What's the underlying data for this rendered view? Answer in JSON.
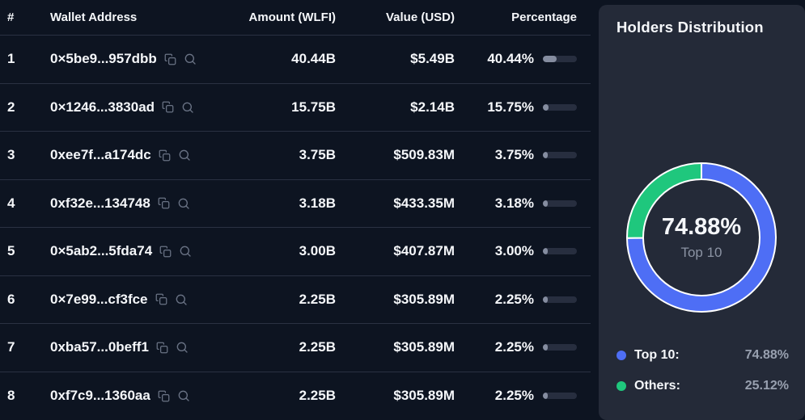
{
  "table": {
    "header": {
      "rank": "#",
      "wallet": "Wallet Address",
      "amount": "Amount (WLFI)",
      "value": "Value (USD)",
      "percentage": "Percentage"
    },
    "rows": [
      {
        "rank": "1",
        "wallet": "0×5be9...957dbb",
        "amount": "40.44B",
        "value": "$5.49B",
        "percentage": "40.44%",
        "pct": 40.44
      },
      {
        "rank": "2",
        "wallet": "0×1246...3830ad",
        "amount": "15.75B",
        "value": "$2.14B",
        "percentage": "15.75%",
        "pct": 15.75
      },
      {
        "rank": "3",
        "wallet": "0xee7f...a174dc",
        "amount": "3.75B",
        "value": "$509.83M",
        "percentage": "3.75%",
        "pct": 3.75
      },
      {
        "rank": "4",
        "wallet": "0xf32e...134748",
        "amount": "3.18B",
        "value": "$433.35M",
        "percentage": "3.18%",
        "pct": 3.18
      },
      {
        "rank": "5",
        "wallet": "0×5ab2...5fda74",
        "amount": "3.00B",
        "value": "$407.87M",
        "percentage": "3.00%",
        "pct": 3.0
      },
      {
        "rank": "6",
        "wallet": "0×7e99...cf3fce",
        "amount": "2.25B",
        "value": "$305.89M",
        "percentage": "2.25%",
        "pct": 2.25
      },
      {
        "rank": "7",
        "wallet": "0xba57...0beff1",
        "amount": "2.25B",
        "value": "$305.89M",
        "percentage": "2.25%",
        "pct": 2.25
      },
      {
        "rank": "8",
        "wallet": "0xf7c9...1360aa",
        "amount": "2.25B",
        "value": "$305.89M",
        "percentage": "2.25%",
        "pct": 2.25
      }
    ]
  },
  "panel": {
    "title": "Holders Distribution",
    "center": {
      "value": "74.88%",
      "label": "Top 10"
    },
    "legend": [
      {
        "label": "Top 10:",
        "value": "74.88%",
        "color": "#4e6ef5"
      },
      {
        "label": "Others:",
        "value": "25.12%",
        "color": "#1fc77d"
      }
    ]
  },
  "chart_data": {
    "type": "pie",
    "title": "Holders Distribution",
    "donut": true,
    "labels": [
      "Top 10",
      "Others"
    ],
    "values": [
      74.88,
      25.12
    ],
    "colors": [
      "#4e6ef5",
      "#1fc77d"
    ],
    "center_text": {
      "value": "74.88%",
      "label": "Top 10"
    },
    "legend_position": "bottom",
    "start_angle_deg_clockwise_from_top": 0
  },
  "icons": {
    "copy": "copy-icon",
    "search": "search-icon"
  },
  "colors": {
    "page_bg": "#0d1421",
    "panel_bg": "#242a38",
    "divider": "#2a3142",
    "bar_track": "#272e3f",
    "bar_fill": "#858da0",
    "accent_blue": "#4e6ef5",
    "accent_green": "#1fc77d",
    "muted_text": "#98a0af"
  }
}
